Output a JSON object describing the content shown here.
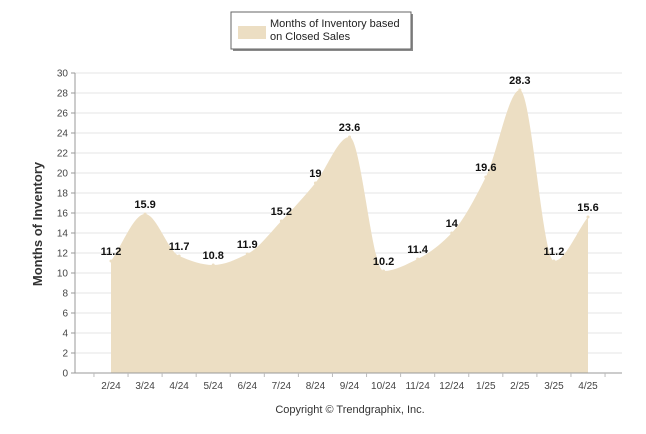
{
  "chart_data": {
    "type": "area",
    "categories": [
      "2/24",
      "3/24",
      "4/24",
      "5/24",
      "6/24",
      "7/24",
      "8/24",
      "9/24",
      "10/24",
      "11/24",
      "12/24",
      "1/25",
      "2/25",
      "3/25",
      "4/25"
    ],
    "series": [
      {
        "name": "Months of Inventory based on Closed Sales",
        "name_lines": [
          "Months of Inventory based",
          "on Closed Sales"
        ],
        "values": [
          11.2,
          15.9,
          11.7,
          10.8,
          11.9,
          15.2,
          19,
          23.6,
          10.2,
          11.4,
          14,
          19.6,
          28.3,
          11.2,
          15.6
        ],
        "labels": [
          "11.2",
          "15.9",
          "11.7",
          "10.8",
          "11.9",
          "15.2",
          "19",
          "23.6",
          "10.2",
          "11.4",
          "14",
          "19.6",
          "28.3",
          "11.2",
          "15.6"
        ],
        "color": "#ecdec3"
      }
    ],
    "ylabel": "Months of Inventory",
    "xlabel": "",
    "ylim": [
      0,
      30
    ],
    "yticks": [
      "0",
      "2",
      "4",
      "6",
      "8",
      "10",
      "12",
      "14",
      "16",
      "18",
      "20",
      "22",
      "24",
      "26",
      "28",
      "30"
    ],
    "grid": true,
    "legend": "top-center",
    "credit": "Copyright © Trendgraphix, Inc."
  }
}
